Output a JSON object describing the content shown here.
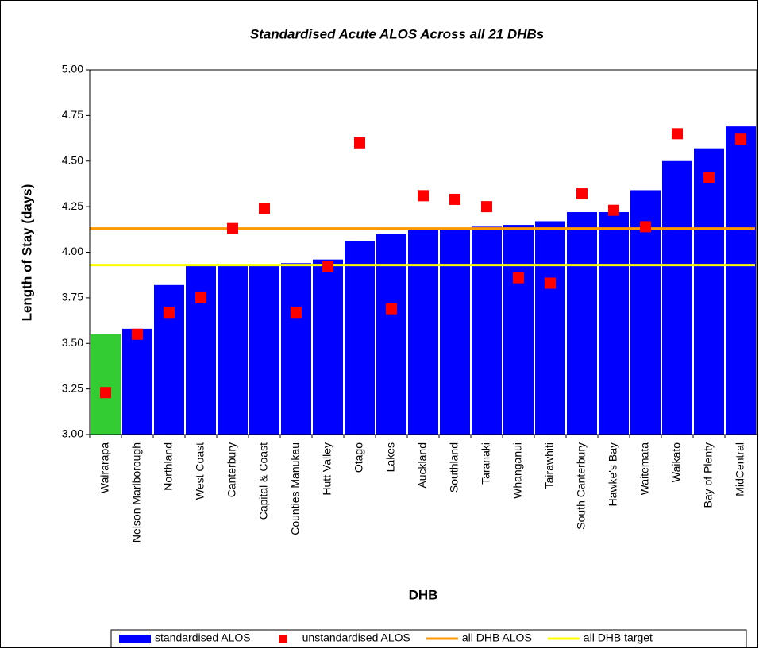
{
  "chart_data": {
    "type": "bar",
    "title": "Standardised Acute ALOS Across all 21 DHBs",
    "x_label": "DHB",
    "y_label": "Length of Stay (days)",
    "categories": [
      "Wairarapa",
      "Nelson Marlborough",
      "Northland",
      "West Coast",
      "Canterbury",
      "Capital & Coast",
      "Counties Manukau",
      "Hutt Valley",
      "Otago",
      "Lakes",
      "Auckland",
      "Southland",
      "Taranaki",
      "Whanganui",
      "Tairawhiti",
      "South Canterbury",
      "Hawke's Bay",
      "Waitemata",
      "Waikato",
      "Bay of Plenty",
      "MidCentral"
    ],
    "series": [
      {
        "name": "standardised ALOS",
        "type": "bar",
        "color": "#0000ff",
        "colors": [
          "#33cc33",
          "#0000ff",
          "#0000ff",
          "#0000ff",
          "#0000ff",
          "#0000ff",
          "#0000ff",
          "#0000ff",
          "#0000ff",
          "#0000ff",
          "#0000ff",
          "#0000ff",
          "#0000ff",
          "#0000ff",
          "#0000ff",
          "#0000ff",
          "#0000ff",
          "#0000ff",
          "#0000ff",
          "#0000ff",
          "#0000ff"
        ],
        "values": [
          3.55,
          3.58,
          3.82,
          3.93,
          3.93,
          3.93,
          3.94,
          3.96,
          4.06,
          4.1,
          4.12,
          4.13,
          4.14,
          4.15,
          4.17,
          4.22,
          4.22,
          4.34,
          4.5,
          4.57,
          4.69
        ]
      },
      {
        "name": "unstandardised ALOS",
        "type": "scatter",
        "color": "#ff0000",
        "values": [
          3.23,
          3.55,
          3.67,
          3.75,
          4.13,
          4.24,
          3.67,
          3.92,
          4.6,
          3.69,
          4.31,
          4.29,
          4.25,
          3.86,
          3.83,
          4.32,
          4.23,
          4.14,
          4.65,
          4.41,
          4.62
        ]
      }
    ],
    "reference_lines": [
      {
        "name": "all DHB ALOS",
        "color": "#ff9900",
        "value": 4.13
      },
      {
        "name": "all DHB target",
        "color": "#ffff00",
        "value": 3.93
      }
    ],
    "ylim": [
      3.0,
      5.0
    ],
    "yticks": [
      {
        "value": 3.0,
        "label": "3.00"
      },
      {
        "value": 3.25,
        "label": "3.25"
      },
      {
        "value": 3.5,
        "label": "3.50"
      },
      {
        "value": 3.75,
        "label": "3.75"
      },
      {
        "value": 4.0,
        "label": "4.00"
      },
      {
        "value": 4.25,
        "label": "4.25"
      },
      {
        "value": 4.5,
        "label": "4.50"
      },
      {
        "value": 4.75,
        "label": "4.75"
      },
      {
        "value": 5.0,
        "label": "5.00"
      }
    ],
    "grid": false,
    "legend": "bottom"
  }
}
